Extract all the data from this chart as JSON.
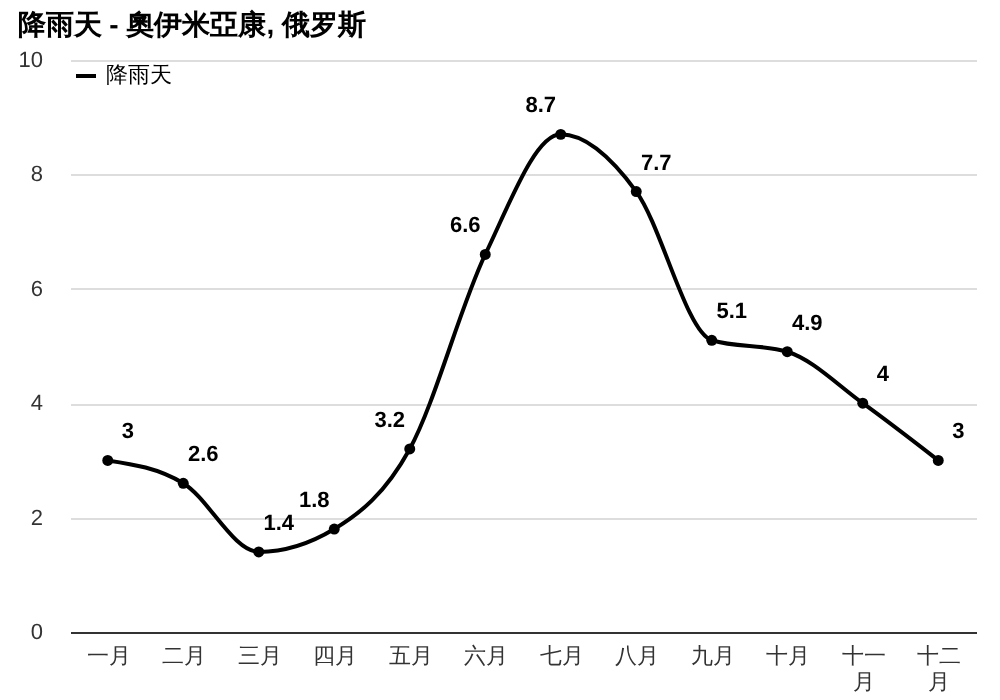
{
  "chart_data": {
    "type": "line",
    "title": "降雨天 - 奧伊米亞康, 俄罗斯",
    "categories": [
      "一月",
      "二月",
      "三月",
      "四月",
      "五月",
      "六月",
      "七月",
      "八月",
      "九月",
      "十月",
      "十一月",
      "十二月"
    ],
    "series": [
      {
        "name": "降雨天",
        "color": "#000000",
        "values": [
          3,
          2.6,
          1.4,
          1.8,
          3.2,
          6.6,
          8.7,
          7.7,
          5.1,
          4.9,
          4,
          3
        ]
      }
    ],
    "ylim": [
      0,
      10
    ],
    "yticks": [
      0,
      2,
      4,
      6,
      8,
      10
    ],
    "grid": "y",
    "legend": "top left",
    "marker": "circle",
    "line_style": "solid",
    "data_labels": true
  }
}
